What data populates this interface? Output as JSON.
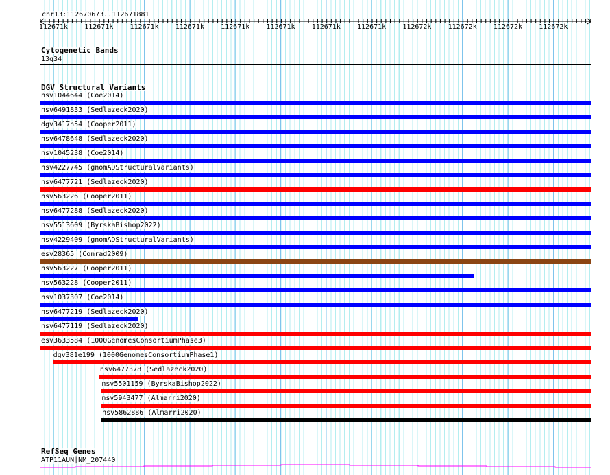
{
  "position": "chr13:112670673..112671881",
  "ruler_ticks": [
    "112671k",
    "112671k",
    "112671k",
    "112671k",
    "112671k",
    "112671k",
    "112671k",
    "112671k",
    "112672k",
    "112672k",
    "112672k",
    "112672k"
  ],
  "cytoband": {
    "title": "Cytogenetic Bands",
    "band": "13q34"
  },
  "dgv": {
    "title": "DGV Structural Variants",
    "items": [
      {
        "label": "nsv1044644 (Coe2014)",
        "color": "#0000ff",
        "start": 0,
        "end": 1
      },
      {
        "label": "nsv6491833 (Sedlazeck2020)",
        "color": "#0000ff",
        "start": 0,
        "end": 1
      },
      {
        "label": "dgv3417n54 (Cooper2011)",
        "color": "#0000ff",
        "start": 0,
        "end": 1
      },
      {
        "label": "nsv6478648 (Sedlazeck2020)",
        "color": "#0000ff",
        "start": 0,
        "end": 1
      },
      {
        "label": "nsv1045238 (Coe2014)",
        "color": "#0000ff",
        "start": 0,
        "end": 1
      },
      {
        "label": "nsv4227745 (gnomADStructuralVariants)",
        "color": "#0000ff",
        "start": 0,
        "end": 1
      },
      {
        "label": "nsv6477721 (Sedlazeck2020)",
        "color": "#ff0000",
        "start": 0,
        "end": 1
      },
      {
        "label": "nsv563226 (Cooper2011)",
        "color": "#0000ff",
        "start": 0,
        "end": 1
      },
      {
        "label": "nsv6477288 (Sedlazeck2020)",
        "color": "#0000ff",
        "start": 0,
        "end": 1
      },
      {
        "label": "nsv5513609 (ByrskaBishop2022)",
        "color": "#0000ff",
        "start": 0,
        "end": 1
      },
      {
        "label": "nsv4229409 (gnomADStructuralVariants)",
        "color": "#0000ff",
        "start": 0,
        "end": 1
      },
      {
        "label": "esv28365 (Conrad2009)",
        "color": "#8b4513",
        "start": 0,
        "end": 1
      },
      {
        "label": "nsv563227 (Cooper2011)",
        "color": "#0000ff",
        "start": 0,
        "end": 0.788
      },
      {
        "label": "nsv563228 (Cooper2011)",
        "color": "#0000ff",
        "start": 0,
        "end": 1
      },
      {
        "label": "nsv1037307 (Coe2014)",
        "color": "#0000ff",
        "start": 0,
        "end": 1
      },
      {
        "label": "nsv6477219 (Sedlazeck2020)",
        "color": "#0000ff",
        "start": 0,
        "end": 0.178
      },
      {
        "label": "nsv6477119 (Sedlazeck2020)",
        "color": "#ff0000",
        "start": 0,
        "end": 1
      },
      {
        "label": "esv3633584 (1000GenomesConsortiumPhase3)",
        "color": "#ff0000",
        "start": 0,
        "end": 1
      },
      {
        "label": "dgv381e199 (1000GenomesConsortiumPhase1)",
        "color": "#ff0000",
        "start": 0.022,
        "end": 1
      },
      {
        "label": "nsv6477378 (Sedlazeck2020)",
        "color": "#ff0000",
        "start": 0.107,
        "end": 1
      },
      {
        "label": "nsv5501159 (ByrskaBishop2022)",
        "color": "#ff0000",
        "start": 0.11,
        "end": 1
      },
      {
        "label": "nsv5943477 (Almarri2020)",
        "color": "#ff0000",
        "start": 0.11,
        "end": 1
      },
      {
        "label": "nsv5862886 (Almarri2020)",
        "color": "#000000",
        "start": 0.111,
        "end": 1
      }
    ]
  },
  "refseq": {
    "title": "RefSeq Genes",
    "gene": "ATP11AUN|NM_207440",
    "color": "#ff00ff"
  }
}
